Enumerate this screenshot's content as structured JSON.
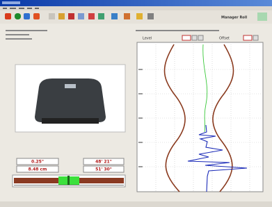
{
  "toolbar": {
    "user_label": "Manager Roll"
  },
  "profile": {
    "left_header": "Level",
    "right_header": "Offset"
  },
  "readouts": {
    "top_left": "0.25\"",
    "top_right": "48' 21\"",
    "bottom_left": "8.48 cm",
    "bottom_right": "51' 30\""
  }
}
